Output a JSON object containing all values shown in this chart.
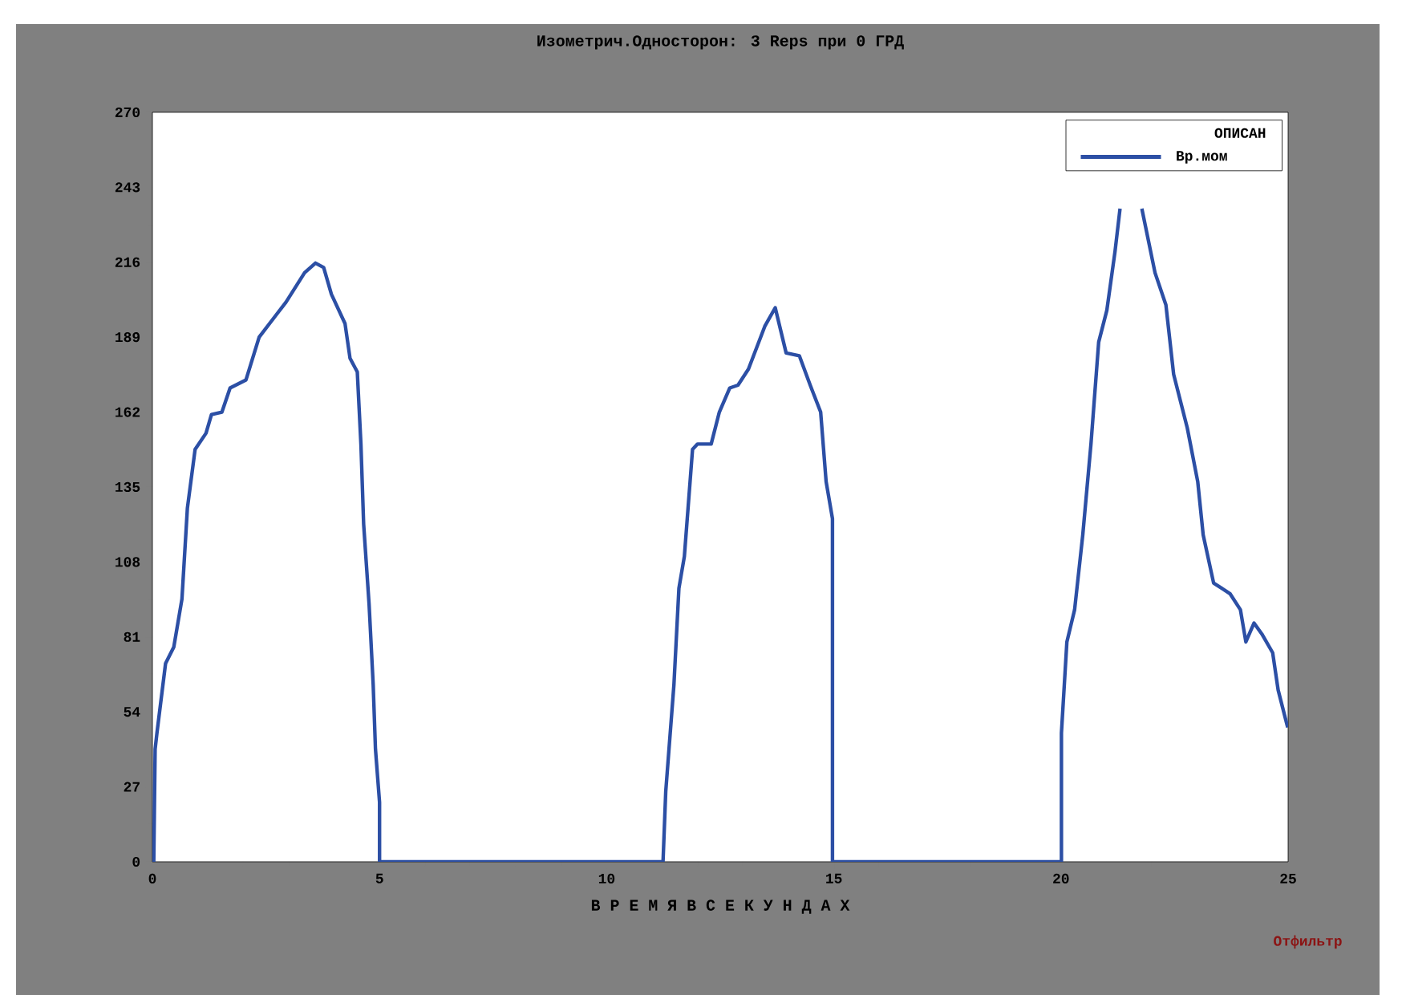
{
  "chart_data": {
    "type": "line",
    "title": "Изометрич.Односторон: 3 Reps  при 0 ГРД",
    "xlabel": "В Р Е М Я   В   С Е К У Н Д А Х",
    "legend_title": "ОПИСАН",
    "legend": "top right",
    "xlim": [
      0,
      25
    ],
    "xticks": [
      0,
      5,
      10,
      15,
      20,
      25
    ],
    "ylim": [
      0,
      270
    ],
    "yticks": [
      0,
      27,
      54,
      81,
      108,
      135,
      162,
      189,
      216,
      243,
      270
    ],
    "annotations": [
      "Отфильтр"
    ],
    "series": [
      {
        "name": "Вр.мом",
        "color": "#2c4fa5",
        "x": [
          0.03,
          0.06,
          0.1,
          0.29,
          0.47,
          0.65,
          0.77,
          0.94,
          1.18,
          1.3,
          1.53,
          1.71,
          2.06,
          2.35,
          2.71,
          2.94,
          3.35,
          3.59,
          3.77,
          3.94,
          4.24,
          4.35,
          4.51,
          4.59,
          4.65,
          4.77,
          4.86,
          4.91,
          5.0,
          5.0,
          11.24,
          11.3,
          11.48,
          11.59,
          11.71,
          11.89,
          12.0,
          12.3,
          12.48,
          12.71,
          12.89,
          13.12,
          13.48,
          13.71,
          13.95,
          14.24,
          14.48,
          14.71,
          14.83,
          14.97,
          14.97,
          20.01,
          20.01,
          20.13,
          20.3,
          20.48,
          20.66,
          20.83,
          21.01,
          21.19,
          21.3,
          21.55,
          21.78,
          22.07,
          22.31,
          22.48,
          22.78,
          23.01,
          23.13,
          23.36,
          23.72,
          23.95,
          24.07,
          24.25,
          24.42,
          24.66,
          24.78,
          24.99
        ],
        "values": [
          0,
          40.6,
          46.4,
          71.5,
          77.3,
          94.6,
          127.4,
          148.6,
          154.4,
          161.1,
          162,
          170.7,
          173.6,
          189,
          196.7,
          201.6,
          212.2,
          215.7,
          214.1,
          204.5,
          193.9,
          181.4,
          176.5,
          150.5,
          121.6,
          92.7,
          63.8,
          40.6,
          21.4,
          0,
          0,
          25.3,
          63.8,
          98.5,
          110,
          148.6,
          150.5,
          150.5,
          162,
          170.7,
          171.7,
          177.5,
          192.9,
          199.6,
          183.3,
          182.3,
          171.7,
          162,
          137,
          123.6,
          0,
          0,
          46.4,
          79.2,
          90.8,
          117.8,
          150.5,
          187.2,
          198.7,
          219.9,
          235.3,
          null,
          235.3,
          212.2,
          200.6,
          175.6,
          156.3,
          137,
          117.8,
          100.4,
          96.6,
          90.8,
          79.2,
          86,
          82.1,
          75.3,
          61.9,
          48.4
        ]
      }
    ]
  }
}
